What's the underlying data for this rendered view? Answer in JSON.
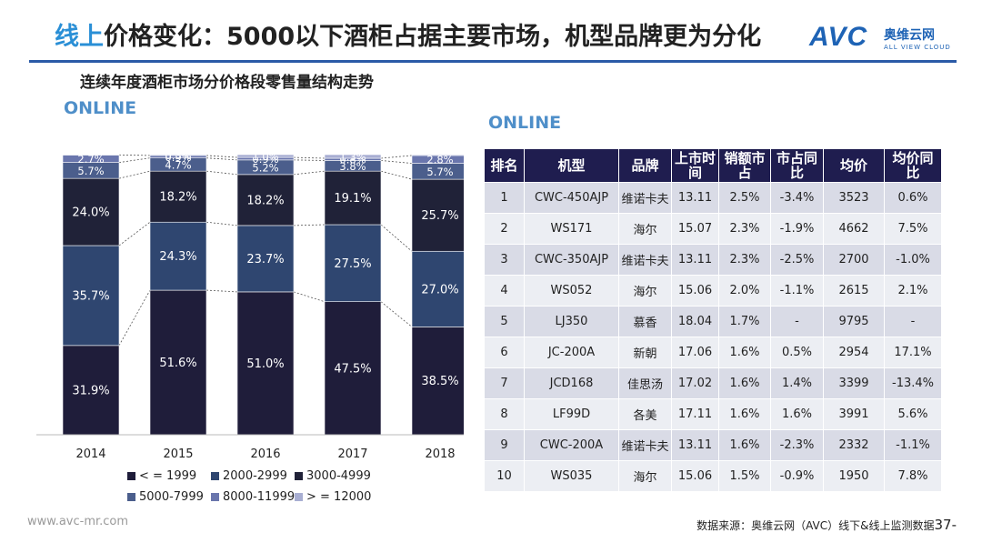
{
  "header": {
    "title_highlight": "线上",
    "title_rest": "价格变化：5000以下酒柜占据主要市场，机型品牌更为分化",
    "logo_mark": "AVC",
    "logo_cn": "奥维云网",
    "logo_en": "ALL VIEW CLOUD"
  },
  "subtitle": "连续年度酒柜市场分价格段零售量结构走势",
  "left_online": "ONLINE",
  "right_online": "ONLINE",
  "chart_data": {
    "type": "bar",
    "stacked": true,
    "categories": [
      "2014",
      "2015",
      "2016",
      "2017",
      "2018"
    ],
    "series": [
      {
        "name": "<=1999",
        "color": "#1f1d3a",
        "values": [
          31.9,
          51.6,
          51.0,
          47.5,
          38.5
        ],
        "labels": [
          "31.9%",
          "51.6%",
          "51.0%",
          "47.5%",
          "38.5%"
        ]
      },
      {
        "name": "2000-2999",
        "color": "#2f4670",
        "values": [
          35.7,
          24.3,
          23.7,
          27.5,
          27.0
        ],
        "labels": [
          "35.7%",
          "24.3%",
          "23.7%",
          "27.5%",
          "27.0%"
        ]
      },
      {
        "name": "3000-4999",
        "color": "#202238",
        "values": [
          24.0,
          18.2,
          18.2,
          19.1,
          25.7
        ],
        "labels": [
          "24.0%",
          "18.2%",
          "18.2%",
          "19.1%",
          "25.7%"
        ]
      },
      {
        "name": "5000-7999",
        "color": "#4b5e8c",
        "values": [
          5.7,
          4.7,
          5.2,
          3.8,
          5.7
        ],
        "labels": [
          "5.7%",
          "4.7%",
          "5.2%",
          "3.8%",
          "5.7%"
        ]
      },
      {
        "name": "8000-11999",
        "color": "#6a76ad",
        "values": [
          2.7,
          0.9,
          0.9,
          0.8,
          2.8
        ],
        "labels": [
          "2.7%",
          "0.9%",
          "0.9%",
          "0.8%",
          "2.8%"
        ]
      },
      {
        "name": ">=12000",
        "color": "#a8aed2",
        "values": [
          0.1,
          0.3,
          1.0,
          1.3,
          0.3
        ],
        "labels": [
          "",
          "0.3%",
          "1.0%",
          "1.3%",
          ""
        ]
      }
    ],
    "ylim": [
      0,
      100
    ],
    "legend": "bottom",
    "grid": false
  },
  "legend_items": [
    "< = 1999",
    "2000-2999",
    "3000-4999",
    "5000-7999",
    "8000-11999",
    "> = 12000"
  ],
  "table": {
    "headers": [
      "排名",
      "机型",
      "品牌",
      "上市时间",
      "销额市占",
      "市占同比",
      "均价",
      "均价同比"
    ],
    "rows": [
      [
        "1",
        "CWC-450AJP",
        "维诺卡夫",
        "13.11",
        "2.5%",
        "-3.4%",
        "3523",
        "0.6%"
      ],
      [
        "2",
        "WS171",
        "海尔",
        "15.07",
        "2.3%",
        "-1.9%",
        "4662",
        "7.5%"
      ],
      [
        "3",
        "CWC-350AJP",
        "维诺卡夫",
        "13.11",
        "2.3%",
        "-2.5%",
        "2700",
        "-1.0%"
      ],
      [
        "4",
        "WS052",
        "海尔",
        "15.06",
        "2.0%",
        "-1.1%",
        "2615",
        "2.1%"
      ],
      [
        "5",
        "LJ350",
        "慕香",
        "18.04",
        "1.7%",
        "-",
        "9795",
        "-"
      ],
      [
        "6",
        "JC-200A",
        "新朝",
        "17.06",
        "1.6%",
        "0.5%",
        "2954",
        "17.1%"
      ],
      [
        "7",
        "JCD168",
        "佳思汤",
        "17.02",
        "1.6%",
        "1.4%",
        "3399",
        "-13.4%"
      ],
      [
        "8",
        "LF99D",
        "各美",
        "17.11",
        "1.6%",
        "1.6%",
        "3991",
        "5.6%"
      ],
      [
        "9",
        "CWC-200A",
        "维诺卡夫",
        "13.11",
        "1.6%",
        "-2.3%",
        "2332",
        "-1.1%"
      ],
      [
        "10",
        "WS035",
        "海尔",
        "15.06",
        "1.5%",
        "-0.9%",
        "1950",
        "7.8%"
      ]
    ]
  },
  "footer": {
    "website": "www.avc-mr.com",
    "source": "数据来源：奥维云网（AVC）线下&线上监测数据",
    "page": "37-"
  }
}
